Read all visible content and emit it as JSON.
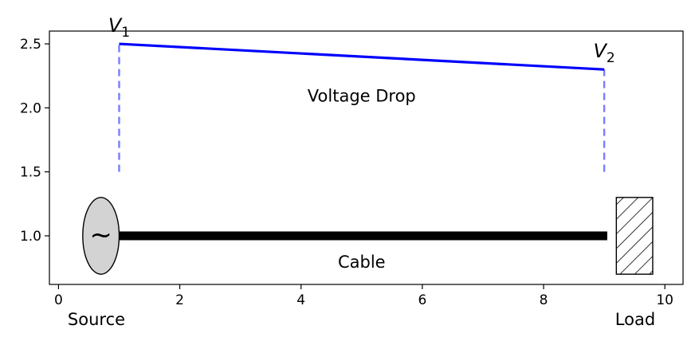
{
  "chart_data": {
    "type": "line",
    "title": "",
    "xlabel": "",
    "ylabel": "",
    "xlim": [
      -0.15,
      10.3
    ],
    "ylim": [
      0.62,
      2.6
    ],
    "x_ticks": [
      0,
      2,
      4,
      6,
      8,
      10
    ],
    "x_tick_labels": [
      "0",
      "2",
      "4",
      "6",
      "8",
      "10"
    ],
    "y_ticks": [
      1.0,
      1.5,
      2.0,
      2.5
    ],
    "y_tick_labels": [
      "1.0",
      "1.5",
      "2.0",
      "2.5"
    ],
    "grid": false,
    "series": [
      {
        "x": [
          1,
          9
        ],
        "values": [
          2.5,
          2.3
        ],
        "color": "#0000ff",
        "style": "solid"
      }
    ],
    "markers": [
      {
        "x": 1,
        "y0": 1.5,
        "y1": 2.5,
        "color": "#7a7aff",
        "style": "dashed"
      },
      {
        "x": 9,
        "y0": 1.5,
        "y1": 2.3,
        "color": "#7a7aff",
        "style": "dashed"
      }
    ],
    "cable": {
      "x0": 0.95,
      "x1": 9.05,
      "y": 1.0,
      "color": "#000000"
    },
    "source": {
      "cx": 0.7,
      "cy": 1.0,
      "rx": 0.3,
      "ry": 0.3,
      "fill": "#d3d3d3",
      "symbol": "~"
    },
    "load": {
      "x0": 9.2,
      "x1": 9.8,
      "y0": 0.7,
      "y1": 1.3,
      "fill": "hatched"
    },
    "annotations": {
      "v1": {
        "base": "V",
        "sub": "1",
        "x": 1,
        "y": 2.5
      },
      "v2": {
        "base": "V",
        "sub": "2",
        "x": 9,
        "y": 2.3
      },
      "voltage_drop": {
        "text": "Voltage Drop",
        "x": 5,
        "y": 2.05
      },
      "cable_label": {
        "text": "Cable",
        "x": 5,
        "y": 0.75
      },
      "source_label": {
        "text": "Source"
      },
      "load_label": {
        "text": "Load"
      }
    }
  }
}
